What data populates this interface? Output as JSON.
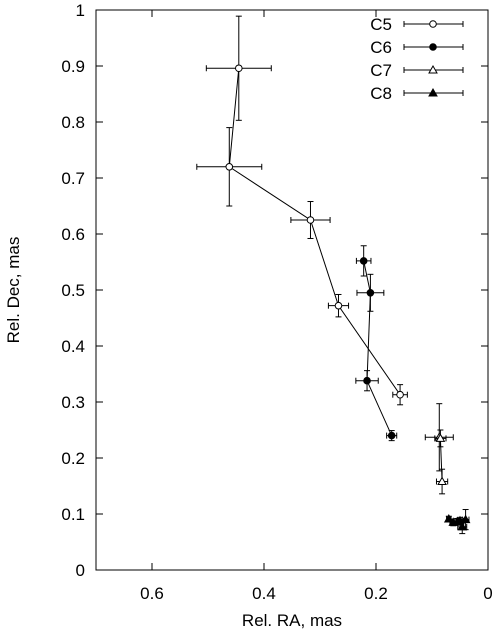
{
  "chart_data": {
    "type": "scatter",
    "xlabel": "Rel. RA, mas",
    "ylabel": "Rel. Dec, mas",
    "xlim": [
      0.7,
      0
    ],
    "ylim": [
      0,
      1
    ],
    "x_inverted": true,
    "xticks": [
      0.6,
      0.4,
      0.2,
      0
    ],
    "yticks": [
      0,
      0.1,
      0.2,
      0.3,
      0.4,
      0.5,
      0.6,
      0.7,
      0.8,
      0.9,
      1
    ],
    "legend_position": "top-right",
    "grid": false,
    "series": [
      {
        "name": "C5",
        "marker": "open-circle",
        "connected": true,
        "points": [
          {
            "x": 0.445,
            "y": 0.896,
            "xerr": 0.058,
            "yerr": 0.093
          },
          {
            "x": 0.462,
            "y": 0.72,
            "xerr": 0.058,
            "yerr": 0.07
          },
          {
            "x": 0.317,
            "y": 0.625,
            "xerr": 0.035,
            "yerr": 0.033
          },
          {
            "x": 0.267,
            "y": 0.472,
            "xerr": 0.018,
            "yerr": 0.02
          },
          {
            "x": 0.157,
            "y": 0.313,
            "xerr": 0.013,
            "yerr": 0.018
          }
        ]
      },
      {
        "name": "C6",
        "marker": "filled-circle",
        "connected": true,
        "points": [
          {
            "x": 0.222,
            "y": 0.552,
            "xerr": 0.013,
            "yerr": 0.027
          },
          {
            "x": 0.21,
            "y": 0.495,
            "xerr": 0.024,
            "yerr": 0.033
          },
          {
            "x": 0.216,
            "y": 0.338,
            "xerr": 0.02,
            "yerr": 0.018
          },
          {
            "x": 0.172,
            "y": 0.24,
            "xerr": 0.009,
            "yerr": 0.009
          }
        ]
      },
      {
        "name": "C7",
        "marker": "open-triangle",
        "connected": true,
        "points": [
          {
            "x": 0.087,
            "y": 0.237,
            "xerr": 0.025,
            "yerr": 0.06
          },
          {
            "x": 0.085,
            "y": 0.235,
            "xerr": 0.01,
            "yerr": 0.015
          },
          {
            "x": 0.082,
            "y": 0.158,
            "xerr": 0.01,
            "yerr": 0.022
          }
        ]
      },
      {
        "name": "C8",
        "marker": "filled-triangle",
        "connected": true,
        "points": [
          {
            "x": 0.07,
            "y": 0.091,
            "xerr": 0.004,
            "yerr": 0.005
          },
          {
            "x": 0.062,
            "y": 0.085,
            "xerr": 0.006,
            "yerr": 0.006
          },
          {
            "x": 0.055,
            "y": 0.086,
            "xerr": 0.006,
            "yerr": 0.006
          },
          {
            "x": 0.05,
            "y": 0.088,
            "xerr": 0.006,
            "yerr": 0.006
          },
          {
            "x": 0.046,
            "y": 0.077,
            "xerr": 0.008,
            "yerr": 0.012
          },
          {
            "x": 0.04,
            "y": 0.09,
            "xerr": 0.006,
            "yerr": 0.018
          }
        ]
      }
    ]
  }
}
